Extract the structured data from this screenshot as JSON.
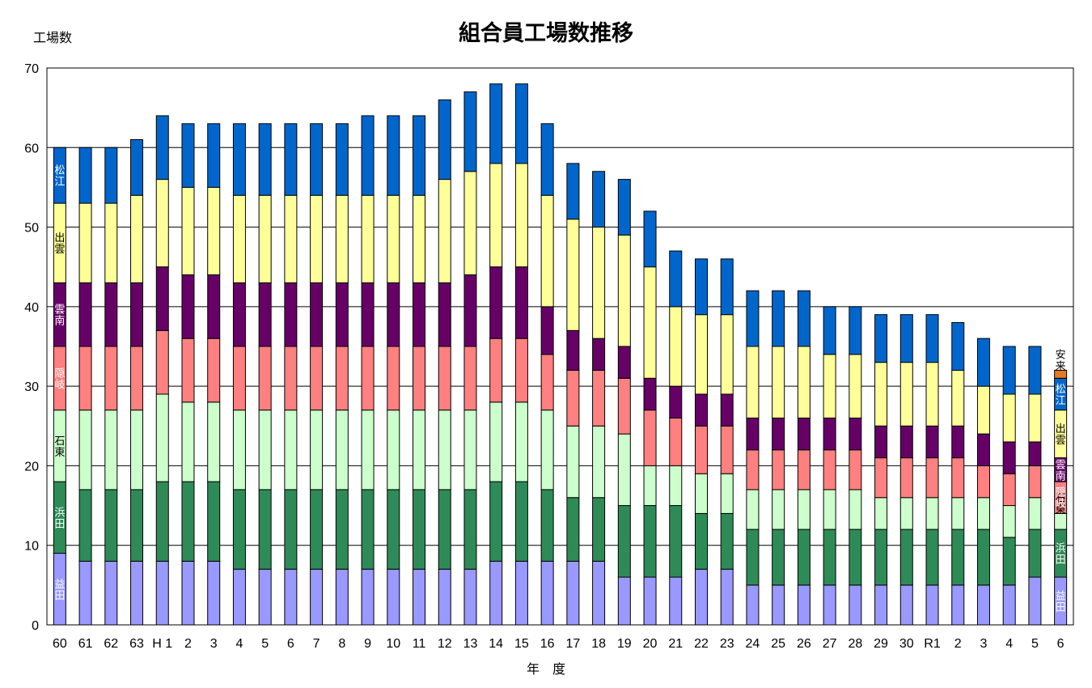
{
  "chart_data": {
    "type": "bar",
    "stacked": true,
    "title": "組合員工場数推移",
    "ylabel": "工場数",
    "xlabel": "年　度",
    "ylim": [
      0,
      70
    ],
    "yticks": [
      0,
      10,
      20,
      30,
      40,
      50,
      60,
      70
    ],
    "grid": true,
    "categories": [
      "60",
      "61",
      "62",
      "63",
      "H 1",
      "2",
      "3",
      "4",
      "5",
      "6",
      "7",
      "8",
      "9",
      "10",
      "11",
      "12",
      "13",
      "14",
      "15",
      "16",
      "17",
      "18",
      "19",
      "20",
      "21",
      "22",
      "23",
      "24",
      "25",
      "26",
      "27",
      "28",
      "29",
      "30",
      "R1",
      "2",
      "3",
      "4",
      "5",
      "6"
    ],
    "series": [
      {
        "name": "益田",
        "color": "#9999ff",
        "label_color": "#ffffff",
        "values": [
          9,
          8,
          8,
          8,
          8,
          8,
          8,
          7,
          7,
          7,
          7,
          7,
          7,
          7,
          7,
          7,
          7,
          8,
          8,
          8,
          8,
          8,
          6,
          6,
          6,
          7,
          7,
          5,
          5,
          5,
          5,
          5,
          5,
          5,
          5,
          5,
          5,
          5,
          6,
          6
        ]
      },
      {
        "name": "浜田",
        "color": "#2e8b57",
        "label_color": "#ffffff",
        "values": [
          9,
          9,
          9,
          9,
          10,
          10,
          10,
          10,
          10,
          10,
          10,
          10,
          10,
          10,
          10,
          10,
          10,
          10,
          10,
          9,
          8,
          8,
          9,
          9,
          9,
          7,
          7,
          7,
          7,
          7,
          7,
          7,
          7,
          7,
          7,
          7,
          7,
          6,
          6,
          6
        ]
      },
      {
        "name": "石東",
        "color": "#ccffcc",
        "label_color": "#000000",
        "values": [
          9,
          10,
          10,
          10,
          11,
          10,
          10,
          10,
          10,
          10,
          10,
          10,
          10,
          10,
          10,
          10,
          10,
          10,
          10,
          10,
          9,
          9,
          9,
          5,
          5,
          5,
          5,
          5,
          5,
          5,
          5,
          5,
          4,
          4,
          4,
          4,
          4,
          4,
          4,
          2
        ]
      },
      {
        "name": "隠岐",
        "color": "#ff8080",
        "label_color": "#ffffff",
        "values": [
          8,
          8,
          8,
          8,
          8,
          8,
          8,
          8,
          8,
          8,
          8,
          8,
          8,
          8,
          8,
          8,
          8,
          8,
          8,
          7,
          7,
          7,
          7,
          7,
          6,
          6,
          6,
          5,
          5,
          5,
          5,
          5,
          5,
          5,
          5,
          5,
          4,
          4,
          4,
          4
        ]
      },
      {
        "name": "雲南",
        "color": "#660066",
        "label_color": "#ffffff",
        "values": [
          8,
          8,
          8,
          8,
          8,
          8,
          8,
          8,
          8,
          8,
          8,
          8,
          8,
          8,
          8,
          8,
          9,
          9,
          9,
          6,
          5,
          4,
          4,
          4,
          4,
          4,
          4,
          4,
          4,
          4,
          4,
          4,
          4,
          4,
          4,
          4,
          4,
          4,
          3,
          3
        ]
      },
      {
        "name": "出雲",
        "color": "#ffff99",
        "label_color": "#000000",
        "values": [
          10,
          10,
          10,
          11,
          11,
          11,
          11,
          11,
          11,
          11,
          11,
          11,
          11,
          11,
          11,
          13,
          13,
          13,
          13,
          14,
          14,
          14,
          14,
          14,
          10,
          10,
          10,
          9,
          9,
          9,
          8,
          8,
          8,
          8,
          8,
          7,
          6,
          6,
          6,
          6
        ]
      },
      {
        "name": "松江",
        "color": "#0066cc",
        "label_color": "#ffffff",
        "values": [
          7,
          7,
          7,
          7,
          8,
          8,
          8,
          9,
          9,
          9,
          9,
          9,
          10,
          10,
          10,
          10,
          10,
          10,
          10,
          9,
          7,
          7,
          7,
          7,
          7,
          7,
          7,
          7,
          7,
          7,
          6,
          6,
          6,
          6,
          6,
          6,
          6,
          6,
          6,
          4
        ]
      },
      {
        "name": "安来",
        "color": "#e87722",
        "label_color": "#000000",
        "values": [
          0,
          0,
          0,
          0,
          0,
          0,
          0,
          0,
          0,
          0,
          0,
          0,
          0,
          0,
          0,
          0,
          0,
          0,
          0,
          0,
          0,
          0,
          0,
          0,
          0,
          0,
          0,
          0,
          0,
          0,
          0,
          0,
          0,
          0,
          0,
          0,
          0,
          0,
          0,
          1
        ]
      }
    ]
  }
}
